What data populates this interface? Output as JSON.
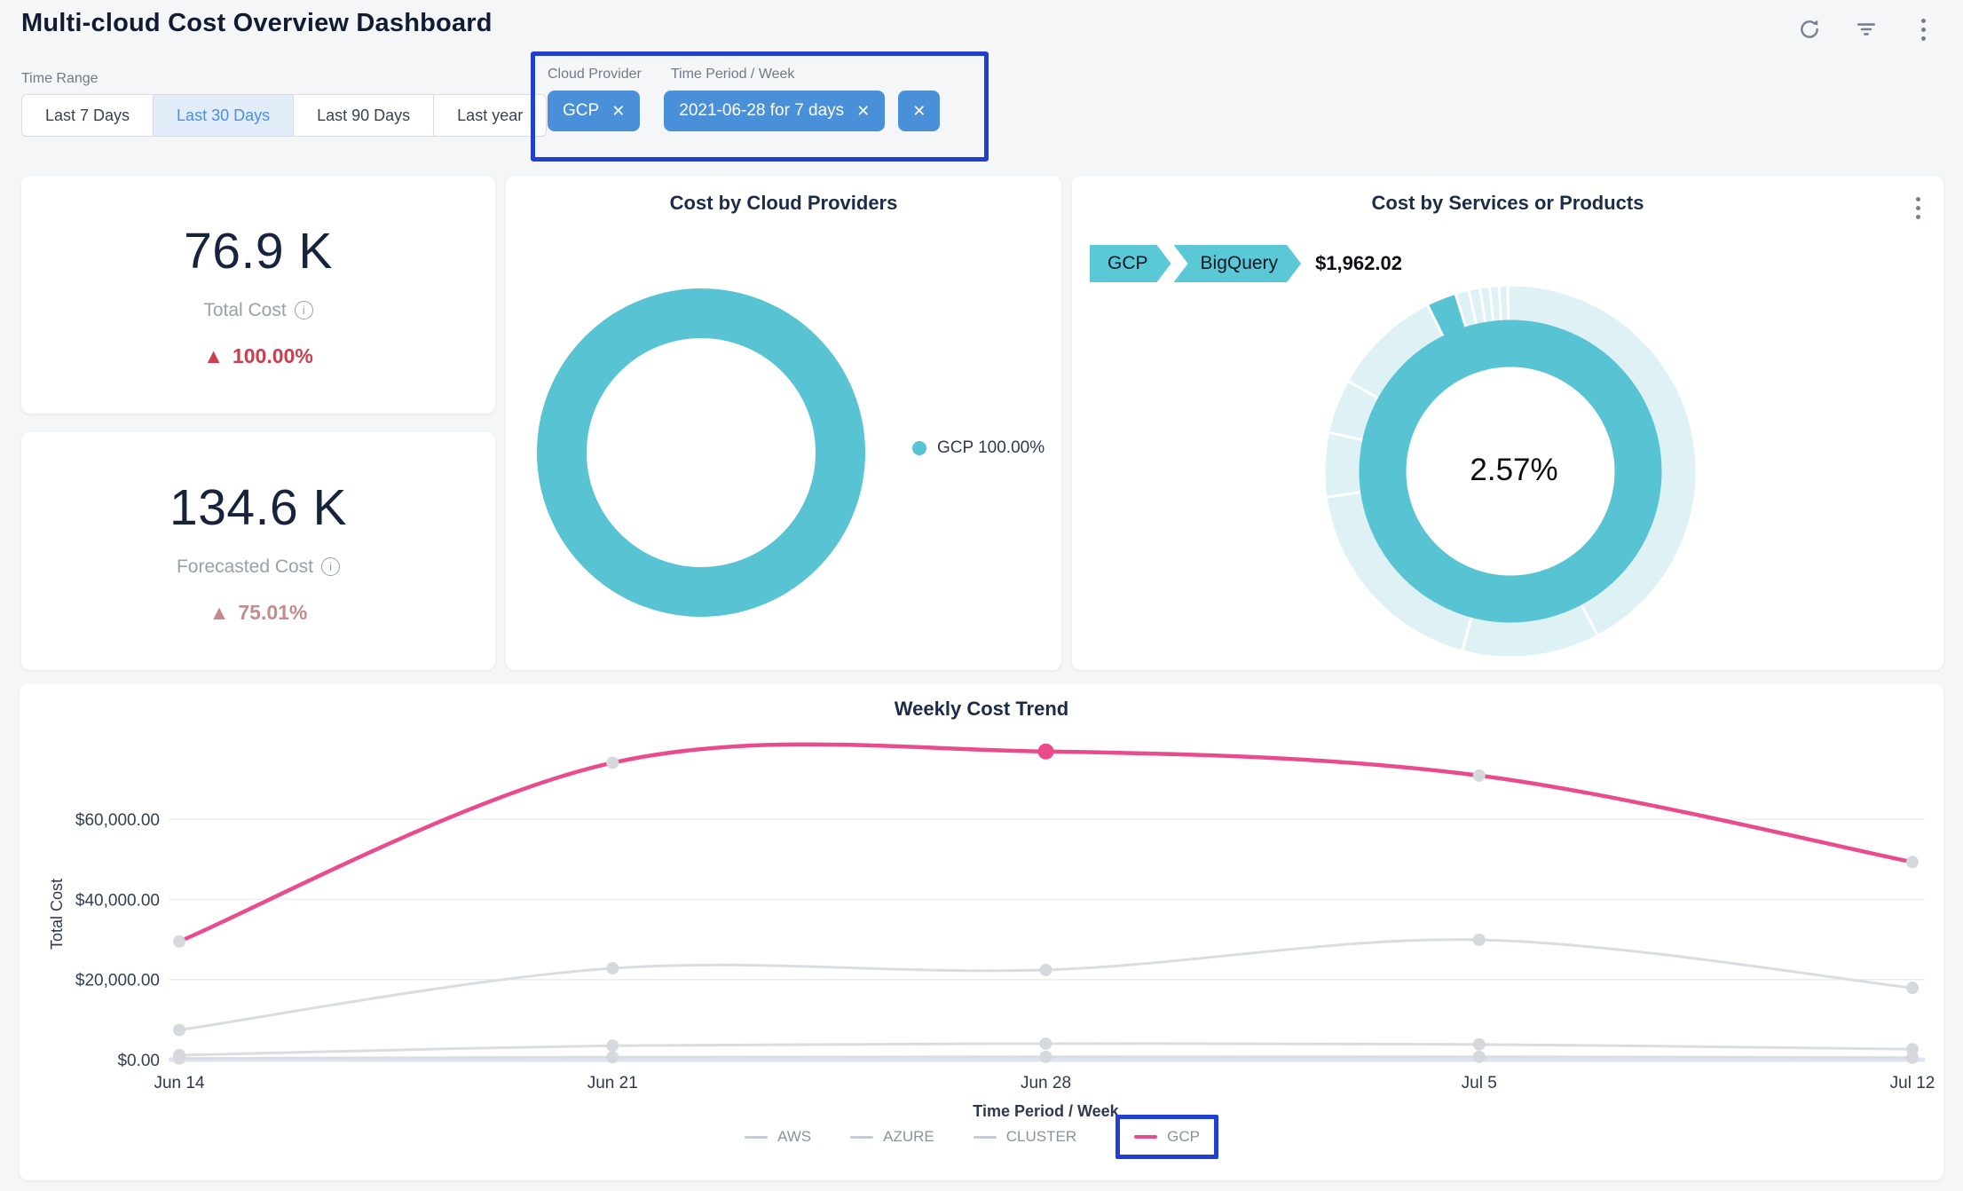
{
  "header": {
    "title": "Multi-cloud Cost Overview Dashboard",
    "icons": [
      "refresh-icon",
      "filter-icon",
      "kebab-menu-icon"
    ]
  },
  "time_range": {
    "label": "Time Range",
    "options": [
      {
        "label": "Last 7 Days",
        "selected": false
      },
      {
        "label": "Last 30 Days",
        "selected": true
      },
      {
        "label": "Last 90 Days",
        "selected": false
      },
      {
        "label": "Last year",
        "selected": false
      }
    ]
  },
  "filters": {
    "cloud_provider": {
      "label": "Cloud Provider",
      "chip": "GCP"
    },
    "time_period": {
      "label": "Time Period / Week",
      "chip": "2021-06-28 for 7 days"
    },
    "close_glyph": "✕"
  },
  "kpis": [
    {
      "value": "76.9 K",
      "label": "Total Cost",
      "delta": "100.00%",
      "delta_glyph": "▲",
      "delta_color": "#ce3d4e"
    },
    {
      "value": "134.6 K",
      "label": "Forecasted Cost",
      "delta": "75.01%",
      "delta_glyph": "▲",
      "delta_color": "#c38d8d"
    }
  ],
  "colors": {
    "teal": "#57c3d3",
    "teal_light": "#def2f6",
    "pink": "#ea4b8d",
    "gray_line": "#d9dce1",
    "marker_gray": "#d5d8dd",
    "annotation_blue": "#2140d2",
    "chip_blue": "#4a90d9",
    "grid": "#ecedf0",
    "baseline": "#dbe3f4",
    "axis_text": "#333f54"
  },
  "chart_data": [
    {
      "type": "pie",
      "title": "Cost by Cloud Providers",
      "labels": [
        "GCP"
      ],
      "values": [
        100.0
      ],
      "colors": [
        "#57c3d3"
      ],
      "donut": true,
      "legend": [
        "GCP 100.00%"
      ],
      "legend_position": "right"
    },
    {
      "type": "pie",
      "subtype": "sunburst",
      "title": "Cost by Services or Products",
      "breadcrumb": [
        "GCP",
        "BigQuery"
      ],
      "breadcrumb_value": "$1,962.02",
      "center_label": "2.57%",
      "inner_ring": {
        "label": "GCP",
        "value": 100.0,
        "color": "#57c3d3"
      },
      "outer_ring": {
        "highlight": {
          "label": "BigQuery",
          "percent": 2.57,
          "start_angle": 333.5,
          "end_angle": 342.8,
          "color": "#57c3d3"
        },
        "other_color": "#def2f6",
        "gap_angles": [
          152,
          195,
          262,
          282,
          299,
          333.5,
          342.8,
          347,
          350.5,
          353.5,
          356.5,
          359.2
        ]
      }
    },
    {
      "type": "line",
      "title": "Weekly Cost Trend",
      "categories": [
        "Jun 14",
        "Jun 21",
        "Jun 28",
        "Jul 5",
        "Jul 12"
      ],
      "series": [
        {
          "name": "AWS",
          "values": [
            300,
            600,
            700,
            700,
            500
          ],
          "color": "#d9dce1"
        },
        {
          "name": "AZURE",
          "values": [
            1100,
            3500,
            4000,
            3800,
            2600
          ],
          "color": "#d9dce1"
        },
        {
          "name": "CLUSTER",
          "values": [
            7400,
            22800,
            22400,
            29900,
            17900
          ],
          "color": "#d9dce1"
        },
        {
          "name": "GCP",
          "values": [
            29500,
            74100,
            76900,
            70900,
            49300
          ],
          "color": "#ea4b8d"
        }
      ],
      "xlabel": "Time Period / Week",
      "ylabel": "Total Cost",
      "ylim": [
        0,
        80000
      ],
      "yticks": [
        0,
        20000,
        40000,
        60000
      ],
      "ytick_labels": [
        "$0.00",
        "$20,000.00",
        "$40,000.00",
        "$60,000.00"
      ],
      "grid": true,
      "legend_position": "bottom",
      "highlight_point": {
        "series": "GCP",
        "category": "Jun 28",
        "index": 2
      }
    }
  ]
}
